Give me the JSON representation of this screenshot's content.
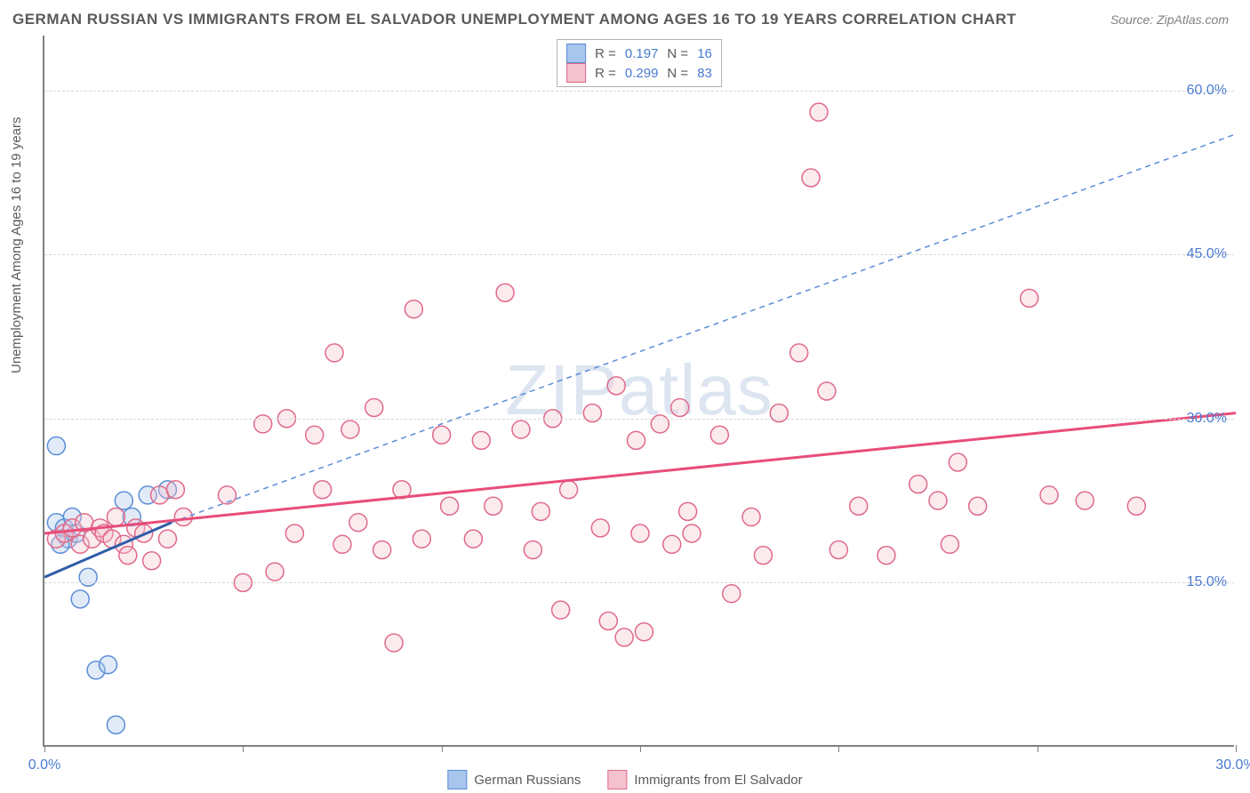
{
  "title": "GERMAN RUSSIAN VS IMMIGRANTS FROM EL SALVADOR UNEMPLOYMENT AMONG AGES 16 TO 19 YEARS CORRELATION CHART",
  "source": "Source: ZipAtlas.com",
  "y_axis_label": "Unemployment Among Ages 16 to 19 years",
  "watermark_zip": "ZIP",
  "watermark_atlas": "atlas",
  "chart": {
    "type": "scatter",
    "background_color": "#ffffff",
    "grid_color": "#d8d8d8",
    "axis_color": "#808080",
    "text_color": "#5a5a5a",
    "value_color": "#4a7bd0",
    "xlim": [
      0,
      30
    ],
    "ylim": [
      0,
      65
    ],
    "x_ticks": [
      0,
      5,
      10,
      15,
      20,
      25,
      30
    ],
    "x_tick_labels": {
      "0": "0.0%",
      "30": "30.0%"
    },
    "y_ticks": [
      15,
      30,
      45,
      60
    ],
    "y_tick_labels": {
      "15": "15.0%",
      "30": "30.0%",
      "45": "45.0%",
      "60": "60.0%"
    },
    "marker_radius": 10,
    "marker_stroke_width": 1.5,
    "marker_fill_opacity": 0.35,
    "series": [
      {
        "name": "German Russians",
        "label": "German Russians",
        "color_fill": "#a8c5ec",
        "color_stroke": "#5b8dd6",
        "R": "0.197",
        "N": "16",
        "trend_solid": {
          "x1": 0,
          "y1": 15.5,
          "x2": 3.2,
          "y2": 20.5,
          "width": 3,
          "color": "#2e5da8"
        },
        "trend_dashed": {
          "x1": 3.2,
          "y1": 20.5,
          "x2": 30,
          "y2": 56,
          "width": 1.5,
          "color": "#5b8dd6",
          "dash": "6,5"
        },
        "points": [
          [
            0.3,
            20.5
          ],
          [
            0.3,
            27.5
          ],
          [
            0.5,
            20
          ],
          [
            0.6,
            19
          ],
          [
            0.7,
            21
          ],
          [
            0.9,
            13.5
          ],
          [
            1.1,
            15.5
          ],
          [
            1.3,
            7
          ],
          [
            1.6,
            7.5
          ],
          [
            1.8,
            2
          ],
          [
            2.0,
            22.5
          ],
          [
            2.2,
            21
          ],
          [
            2.6,
            23
          ],
          [
            3.1,
            23.5
          ],
          [
            0.4,
            18.5
          ],
          [
            0.8,
            19.5
          ]
        ]
      },
      {
        "name": "Immigrants from El Salvador",
        "label": "Immigrants from El Salvador",
        "color_fill": "#f4c2ce",
        "color_stroke": "#e06a8a",
        "R": "0.299",
        "N": "83",
        "trend_solid": {
          "x1": 0,
          "y1": 19.5,
          "x2": 30,
          "y2": 30.5,
          "width": 3,
          "color": "#e84d7a"
        },
        "trend_dashed": null,
        "points": [
          [
            0.3,
            19
          ],
          [
            0.5,
            19.5
          ],
          [
            0.7,
            20
          ],
          [
            0.9,
            18.5
          ],
          [
            1.0,
            20.5
          ],
          [
            1.2,
            19
          ],
          [
            1.4,
            20
          ],
          [
            1.5,
            19.5
          ],
          [
            1.7,
            19
          ],
          [
            1.8,
            21
          ],
          [
            2.0,
            18.5
          ],
          [
            2.1,
            17.5
          ],
          [
            2.3,
            20
          ],
          [
            2.5,
            19.5
          ],
          [
            2.7,
            17
          ],
          [
            2.9,
            23
          ],
          [
            3.1,
            19
          ],
          [
            3.3,
            23.5
          ],
          [
            3.5,
            21
          ],
          [
            4.6,
            23
          ],
          [
            5.5,
            29.5
          ],
          [
            5.8,
            16
          ],
          [
            6.1,
            30
          ],
          [
            6.3,
            19.5
          ],
          [
            6.8,
            28.5
          ],
          [
            7.0,
            23.5
          ],
          [
            7.3,
            36
          ],
          [
            7.5,
            18.5
          ],
          [
            7.7,
            29
          ],
          [
            7.9,
            20.5
          ],
          [
            8.3,
            31
          ],
          [
            8.5,
            18
          ],
          [
            8.8,
            9.5
          ],
          [
            9.0,
            23.5
          ],
          [
            9.3,
            40
          ],
          [
            9.5,
            19
          ],
          [
            10.0,
            28.5
          ],
          [
            10.2,
            22
          ],
          [
            10.8,
            19
          ],
          [
            11.0,
            28
          ],
          [
            11.3,
            22
          ],
          [
            11.6,
            41.5
          ],
          [
            12.0,
            29
          ],
          [
            12.3,
            18
          ],
          [
            12.5,
            21.5
          ],
          [
            12.8,
            30
          ],
          [
            13.0,
            12.5
          ],
          [
            13.2,
            23.5
          ],
          [
            13.8,
            30.5
          ],
          [
            14.0,
            20
          ],
          [
            14.2,
            11.5
          ],
          [
            14.4,
            33
          ],
          [
            14.6,
            10
          ],
          [
            14.9,
            28
          ],
          [
            15.0,
            19.5
          ],
          [
            15.1,
            10.5
          ],
          [
            15.5,
            29.5
          ],
          [
            15.8,
            18.5
          ],
          [
            16.0,
            31
          ],
          [
            16.2,
            21.5
          ],
          [
            16.3,
            19.5
          ],
          [
            17.0,
            28.5
          ],
          [
            17.3,
            14
          ],
          [
            17.8,
            21
          ],
          [
            18.1,
            17.5
          ],
          [
            18.5,
            30.5
          ],
          [
            19.0,
            36
          ],
          [
            19.3,
            52
          ],
          [
            19.5,
            58
          ],
          [
            19.7,
            32.5
          ],
          [
            20.0,
            18
          ],
          [
            20.5,
            22
          ],
          [
            21.2,
            17.5
          ],
          [
            22.0,
            24
          ],
          [
            22.5,
            22.5
          ],
          [
            23.0,
            26
          ],
          [
            23.5,
            22
          ],
          [
            24.8,
            41
          ],
          [
            25.3,
            23
          ],
          [
            26.2,
            22.5
          ],
          [
            27.5,
            22
          ],
          [
            22.8,
            18.5
          ],
          [
            5.0,
            15
          ]
        ]
      }
    ]
  },
  "legend_top": [
    {
      "swatch_fill": "#a8c5ec",
      "swatch_stroke": "#5b8dd6",
      "r_label": "R  =",
      "r_val": "0.197",
      "n_label": "N  =",
      "n_val": "16"
    },
    {
      "swatch_fill": "#f4c2ce",
      "swatch_stroke": "#e06a8a",
      "r_label": "R  =",
      "r_val": "0.299",
      "n_label": "N  =",
      "n_val": "83"
    }
  ],
  "legend_bottom": [
    {
      "swatch_fill": "#a8c5ec",
      "swatch_stroke": "#5b8dd6",
      "label": "German Russians"
    },
    {
      "swatch_fill": "#f4c2ce",
      "swatch_stroke": "#e06a8a",
      "label": "Immigrants from El Salvador"
    }
  ]
}
